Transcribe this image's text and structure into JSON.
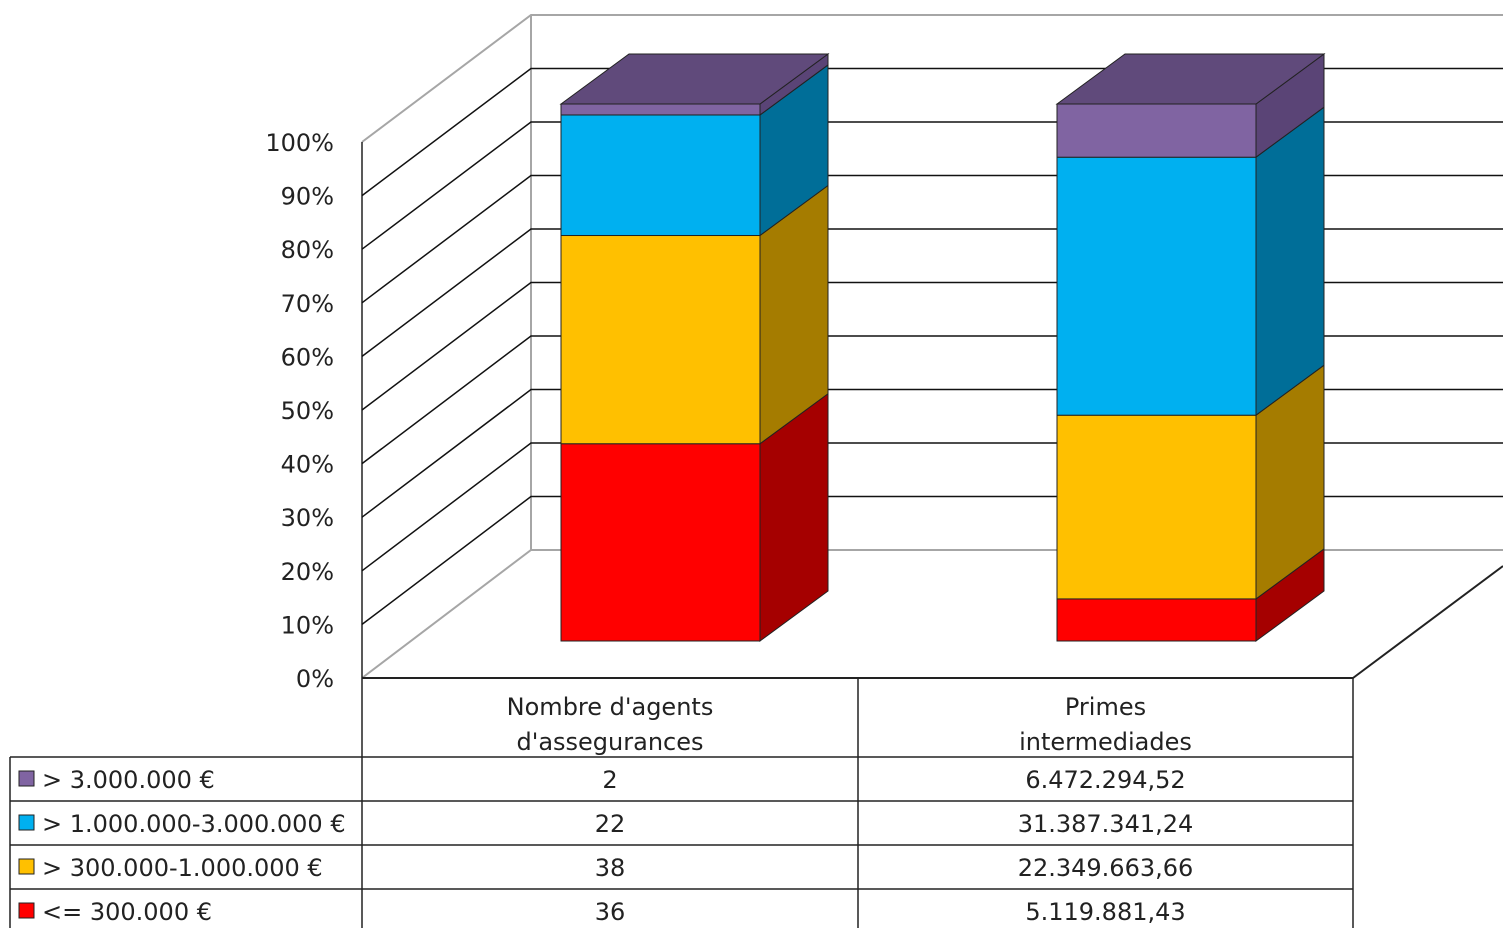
{
  "chart_data": {
    "type": "bar",
    "stacked": "percent",
    "three_d": true,
    "y_ticks": [
      "0%",
      "10%",
      "20%",
      "30%",
      "40%",
      "50%",
      "60%",
      "70%",
      "80%",
      "90%",
      "100%"
    ],
    "ylim": [
      0,
      100
    ],
    "categories": [
      "Nombre d'agents d'assegurances",
      "Primes intermediades"
    ],
    "category_lines": [
      [
        "Nombre d'agents",
        "d'assegurances"
      ],
      [
        "Primes",
        "intermediades"
      ]
    ],
    "series": [
      {
        "name": "<= 300.000 €",
        "values": [
          36,
          5119881.43
        ],
        "labels": [
          "36",
          "5.119.881,43"
        ],
        "color": "#ff0000",
        "side_color": "#a50000"
      },
      {
        "name": "> 300.000-1.000.000 €",
        "values": [
          38,
          22349663.66
        ],
        "labels": [
          "38",
          "22.349.663,66"
        ],
        "color": "#ffc000",
        "side_color": "#a57c00"
      },
      {
        "name": "> 1.000.000-3.000.000 €",
        "values": [
          22,
          31387341.24
        ],
        "labels": [
          "22",
          "31.387.341,24"
        ],
        "color": "#00b0f0",
        "side_color": "#006e98"
      },
      {
        "name": "> 3.000.000 €",
        "values": [
          2,
          6472294.52
        ],
        "labels": [
          "2",
          "6.472.294,52"
        ],
        "color": "#8064a2",
        "side_color": "#5a4476"
      }
    ],
    "legend_placement": "data-table",
    "grid": true
  }
}
